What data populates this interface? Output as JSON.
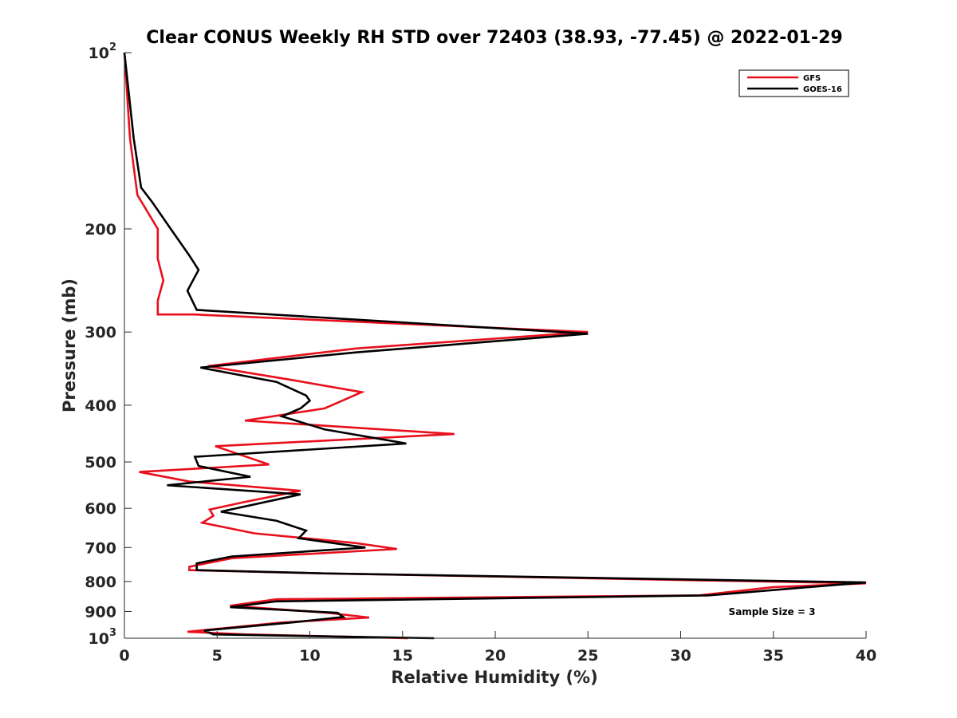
{
  "chart_data": {
    "type": "line",
    "title": "Clear CONUS Weekly RH STD over 72403 (38.93, -77.45) @ 2022-01-29",
    "xlabel": "Relative Humidity (%)",
    "ylabel": "Pressure (mb)",
    "xlim": [
      0,
      40
    ],
    "ylim": [
      100,
      1000
    ],
    "y_scale": "log",
    "y_reversed": true,
    "x_ticks": [
      "0",
      "5",
      "10",
      "15",
      "20",
      "25",
      "30",
      "35",
      "40"
    ],
    "y_ticks": [
      {
        "value": 100,
        "base": "10",
        "sup": "2"
      },
      {
        "value": 200,
        "base": "200",
        "sup": ""
      },
      {
        "value": 300,
        "base": "300",
        "sup": ""
      },
      {
        "value": 400,
        "base": "400",
        "sup": ""
      },
      {
        "value": 500,
        "base": "500",
        "sup": ""
      },
      {
        "value": 600,
        "base": "600",
        "sup": ""
      },
      {
        "value": 700,
        "base": "700",
        "sup": ""
      },
      {
        "value": 800,
        "base": "800",
        "sup": ""
      },
      {
        "value": 900,
        "base": "900",
        "sup": ""
      },
      {
        "value": 1000,
        "base": "10",
        "sup": "3"
      }
    ],
    "legend_position": "top-right",
    "grid": false,
    "annotation": "Sample Size = 3",
    "series": [
      {
        "name": "GFS",
        "color": "#e8101c",
        "points": [
          [
            0.0,
            100
          ],
          [
            0.3,
            140
          ],
          [
            0.7,
            175
          ],
          [
            1.8,
            200
          ],
          [
            1.8,
            225
          ],
          [
            2.1,
            245
          ],
          [
            1.8,
            265
          ],
          [
            1.8,
            280
          ],
          [
            3.8,
            280
          ],
          [
            25.0,
            300
          ],
          [
            12.5,
            320
          ],
          [
            4.5,
            343
          ],
          [
            9.2,
            363
          ],
          [
            12.8,
            380
          ],
          [
            10.8,
            405
          ],
          [
            6.5,
            425
          ],
          [
            17.8,
            448
          ],
          [
            4.9,
            470
          ],
          [
            7.8,
            505
          ],
          [
            0.8,
            520
          ],
          [
            3.5,
            540
          ],
          [
            9.5,
            560
          ],
          [
            6.5,
            585
          ],
          [
            4.6,
            603
          ],
          [
            4.8,
            618
          ],
          [
            4.2,
            635
          ],
          [
            7.0,
            662
          ],
          [
            12.5,
            688
          ],
          [
            14.7,
            704
          ],
          [
            5.8,
            730
          ],
          [
            3.5,
            755
          ],
          [
            3.5,
            765
          ],
          [
            10.8,
            775
          ],
          [
            40.0,
            806
          ],
          [
            35.0,
            818
          ],
          [
            31.0,
            845
          ],
          [
            8.2,
            858
          ],
          [
            5.7,
            880
          ],
          [
            11.0,
            905
          ],
          [
            13.2,
            922
          ],
          [
            8.5,
            940
          ],
          [
            3.4,
            975
          ],
          [
            6.5,
            985
          ],
          [
            15.3,
            1000
          ]
        ]
      },
      {
        "name": "GOES-16",
        "color": "#000000",
        "points": [
          [
            0.0,
            100
          ],
          [
            0.5,
            140
          ],
          [
            0.9,
            170
          ],
          [
            1.5,
            180
          ],
          [
            2.5,
            200
          ],
          [
            3.5,
            222
          ],
          [
            4.0,
            235
          ],
          [
            3.4,
            255
          ],
          [
            3.9,
            275
          ],
          [
            25.0,
            302
          ],
          [
            12.5,
            325
          ],
          [
            4.1,
            345
          ],
          [
            8.2,
            365
          ],
          [
            9.8,
            385
          ],
          [
            10.0,
            393
          ],
          [
            9.5,
            405
          ],
          [
            8.5,
            418
          ],
          [
            10.8,
            440
          ],
          [
            15.2,
            465
          ],
          [
            3.8,
            490
          ],
          [
            4.0,
            508
          ],
          [
            6.8,
            530
          ],
          [
            2.3,
            548
          ],
          [
            9.5,
            568
          ],
          [
            5.2,
            608
          ],
          [
            8.2,
            630
          ],
          [
            9.8,
            655
          ],
          [
            9.4,
            675
          ],
          [
            13.0,
            700
          ],
          [
            5.8,
            725
          ],
          [
            3.9,
            745
          ],
          [
            3.9,
            765
          ],
          [
            10.8,
            775
          ],
          [
            40.0,
            803
          ],
          [
            31.5,
            845
          ],
          [
            8.2,
            865
          ],
          [
            5.7,
            885
          ],
          [
            11.5,
            905
          ],
          [
            11.8,
            920
          ],
          [
            9.0,
            940
          ],
          [
            4.3,
            970
          ],
          [
            4.8,
            985
          ],
          [
            16.7,
            1000
          ]
        ]
      }
    ]
  }
}
